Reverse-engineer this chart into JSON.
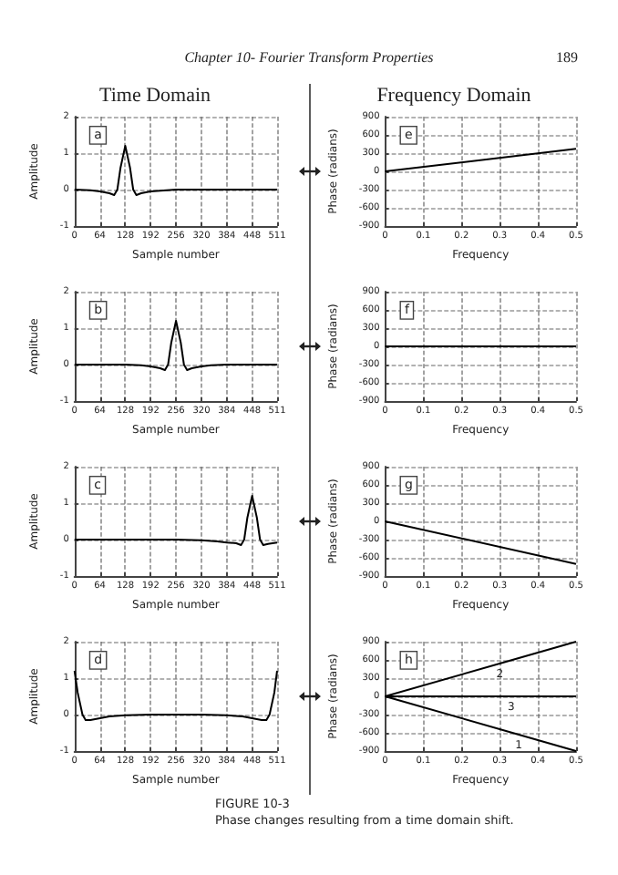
{
  "chart_data": [
    {
      "type": "line",
      "title": "Time Domain",
      "xlabel": "Sample number",
      "ylabel": "Amplitude",
      "annotations": [
        "a",
        "Chapter 10- Fourier Transform Properties",
        "189"
      ],
      "x": [
        0,
        40,
        64,
        88,
        100,
        108,
        116,
        128,
        140,
        148,
        156,
        168,
        192,
        256,
        320,
        384,
        448,
        511
      ],
      "values": [
        0,
        -0.02,
        -0.05,
        -0.1,
        -0.15,
        0,
        0.6,
        1.2,
        0.6,
        0,
        -0.15,
        -0.1,
        -0.05,
        0,
        0,
        0,
        0,
        0
      ],
      "color": "#000000",
      "xlim": [
        0,
        511
      ],
      "xticks": [
        0,
        64,
        128,
        192,
        256,
        320,
        384,
        448,
        511
      ],
      "ylim": [
        -1,
        2
      ],
      "yticks": [
        -1,
        0,
        1,
        2
      ],
      "grid": true,
      "marker": "none",
      "legend": false
    },
    {
      "type": "line",
      "title": "Frequency Domain",
      "xlabel": "Frequency",
      "ylabel": "Phase (radians)",
      "annotations": [
        "e"
      ],
      "x": [
        0,
        0.5
      ],
      "values": [
        0,
        370
      ],
      "color": "#000000",
      "xlim": [
        0,
        0.5
      ],
      "xticks": [
        0,
        0.1,
        0.2,
        0.3,
        0.4,
        0.5
      ],
      "ylim": [
        -900,
        900
      ],
      "yticks": [
        -900,
        -600,
        -300,
        0,
        300,
        600,
        900
      ],
      "grid": true,
      "marker": "none",
      "legend": false
    },
    {
      "type": "line",
      "xlabel": "Sample number",
      "ylabel": "Amplitude",
      "annotations": [
        "b"
      ],
      "x": [
        0,
        64,
        128,
        168,
        192,
        216,
        228,
        236,
        244,
        256,
        268,
        276,
        284,
        296,
        320,
        344,
        384,
        448,
        511
      ],
      "values": [
        0,
        0,
        0,
        -0.02,
        -0.05,
        -0.1,
        -0.15,
        0,
        0.6,
        1.2,
        0.6,
        0,
        -0.15,
        -0.1,
        -0.05,
        -0.02,
        0,
        0,
        0
      ],
      "color": "#000000",
      "xlim": [
        0,
        511
      ],
      "xticks": [
        0,
        64,
        128,
        192,
        256,
        320,
        384,
        448,
        511
      ],
      "ylim": [
        -1,
        2
      ],
      "yticks": [
        -1,
        0,
        1,
        2
      ],
      "grid": true,
      "marker": "none",
      "legend": false
    },
    {
      "type": "line",
      "xlabel": "Frequency",
      "ylabel": "Phase (radians)",
      "annotations": [
        "f"
      ],
      "x": [
        0,
        0.5
      ],
      "values": [
        0,
        0
      ],
      "color": "#000000",
      "xlim": [
        0,
        0.5
      ],
      "xticks": [
        0,
        0.1,
        0.2,
        0.3,
        0.4,
        0.5
      ],
      "ylim": [
        -900,
        900
      ],
      "yticks": [
        -900,
        -600,
        -300,
        0,
        300,
        600,
        900
      ],
      "grid": true,
      "marker": "none",
      "legend": false
    },
    {
      "type": "line",
      "xlabel": "Sample number",
      "ylabel": "Amplitude",
      "annotations": [
        "c"
      ],
      "x": [
        0,
        64,
        128,
        192,
        256,
        320,
        360,
        384,
        408,
        420,
        428,
        436,
        448,
        460,
        468,
        476,
        488,
        511
      ],
      "values": [
        0,
        0,
        0,
        0,
        0,
        -0.02,
        -0.05,
        -0.08,
        -0.1,
        -0.15,
        0,
        0.6,
        1.2,
        0.6,
        0,
        -0.15,
        -0.12,
        -0.08
      ],
      "color": "#000000",
      "xlim": [
        0,
        511
      ],
      "xticks": [
        0,
        64,
        128,
        192,
        256,
        320,
        384,
        448,
        511
      ],
      "ylim": [
        -1,
        2
      ],
      "yticks": [
        -1,
        0,
        1,
        2
      ],
      "grid": true,
      "marker": "none",
      "legend": false
    },
    {
      "type": "line",
      "xlabel": "Frequency",
      "ylabel": "Phase (radians)",
      "annotations": [
        "g"
      ],
      "x": [
        0,
        0.5
      ],
      "values": [
        0,
        -700
      ],
      "color": "#000000",
      "xlim": [
        0,
        0.5
      ],
      "xticks": [
        0,
        0.1,
        0.2,
        0.3,
        0.4,
        0.5
      ],
      "ylim": [
        -900,
        900
      ],
      "yticks": [
        -900,
        -600,
        -300,
        0,
        300,
        600,
        900
      ],
      "grid": true,
      "marker": "none",
      "legend": false
    },
    {
      "type": "line",
      "xlabel": "Sample number",
      "ylabel": "Amplitude",
      "annotations": [
        "d"
      ],
      "x": [
        0,
        8,
        20,
        28,
        40,
        64,
        88,
        128,
        192,
        256,
        320,
        384,
        424,
        448,
        472,
        484,
        492,
        504,
        511
      ],
      "values": [
        1.2,
        0.6,
        0,
        -0.15,
        -0.15,
        -0.1,
        -0.05,
        -0.02,
        0,
        0,
        0,
        -0.02,
        -0.05,
        -0.1,
        -0.15,
        -0.15,
        0,
        0.6,
        1.2
      ],
      "color": "#000000",
      "xlim": [
        0,
        511
      ],
      "xticks": [
        0,
        64,
        128,
        192,
        256,
        320,
        384,
        448,
        511
      ],
      "ylim": [
        -1,
        2
      ],
      "yticks": [
        -1,
        0,
        1,
        2
      ],
      "grid": true,
      "marker": "none",
      "legend": false
    },
    {
      "type": "line",
      "xlabel": "Frequency",
      "ylabel": "Phase (radians)",
      "annotations": [
        "h",
        "FIGURE 10-3",
        "Phase changes resulting from a time domain shift."
      ],
      "series": [
        {
          "name": "1",
          "color": "#000000",
          "x": [
            0,
            0.35,
            0.5
          ],
          "values": [
            0,
            -630,
            -900
          ]
        },
        {
          "name": "2",
          "color": "#000000",
          "x": [
            0,
            0.3,
            0.5
          ],
          "values": [
            0,
            540,
            900
          ]
        },
        {
          "name": "3",
          "color": "#000000",
          "x": [
            0,
            0.33,
            0.5
          ],
          "values": [
            0,
            0,
            0
          ]
        }
      ],
      "xlim": [
        0,
        0.5
      ],
      "xticks": [
        0,
        0.1,
        0.2,
        0.3,
        0.4,
        0.5
      ],
      "ylim": [
        -900,
        900
      ],
      "yticks": [
        -900,
        -600,
        -300,
        0,
        300,
        600,
        900
      ],
      "grid": true,
      "marker": "none",
      "legend": false
    }
  ]
}
